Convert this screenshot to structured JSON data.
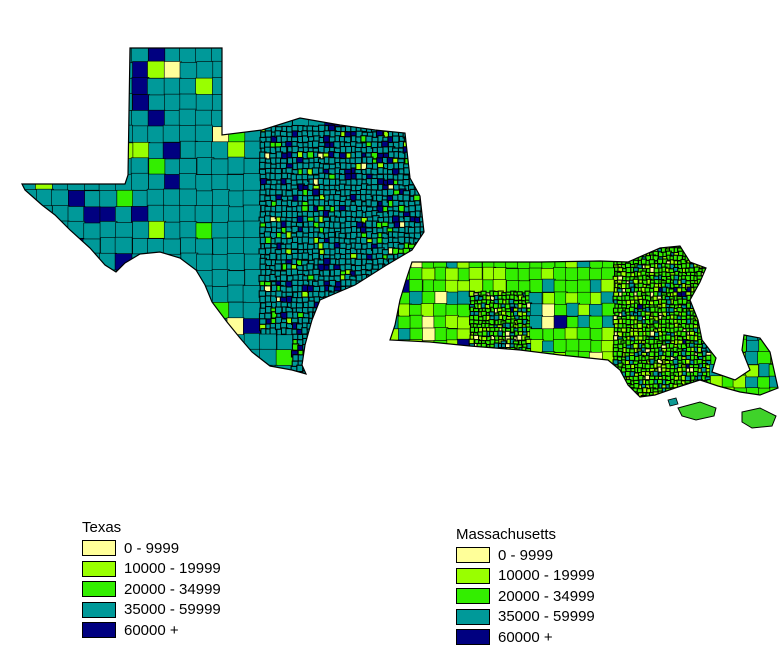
{
  "map": {
    "regions": [
      {
        "name": "Texas",
        "dominant_class": "35000 - 59999"
      },
      {
        "name": "Massachusetts",
        "dominant_class": "20000 - 34999"
      }
    ],
    "boundary_color": "#000000"
  },
  "legends": [
    {
      "title": "Texas",
      "items": [
        {
          "label": "0 - 9999",
          "color": "#ffff99"
        },
        {
          "label": "10000 - 19999",
          "color": "#99ff00"
        },
        {
          "label": "20000 - 34999",
          "color": "#33ee00"
        },
        {
          "label": "35000 - 59999",
          "color": "#009999"
        },
        {
          "label": "60000 +",
          "color": "#000080"
        }
      ]
    },
    {
      "title": "Massachusetts",
      "items": [
        {
          "label": "0 - 9999",
          "color": "#ffff99"
        },
        {
          "label": "10000 - 19999",
          "color": "#99ff00"
        },
        {
          "label": "20000 - 34999",
          "color": "#33ee00"
        },
        {
          "label": "35000 - 59999",
          "color": "#009999"
        },
        {
          "label": "60000 +",
          "color": "#000080"
        }
      ]
    }
  ]
}
